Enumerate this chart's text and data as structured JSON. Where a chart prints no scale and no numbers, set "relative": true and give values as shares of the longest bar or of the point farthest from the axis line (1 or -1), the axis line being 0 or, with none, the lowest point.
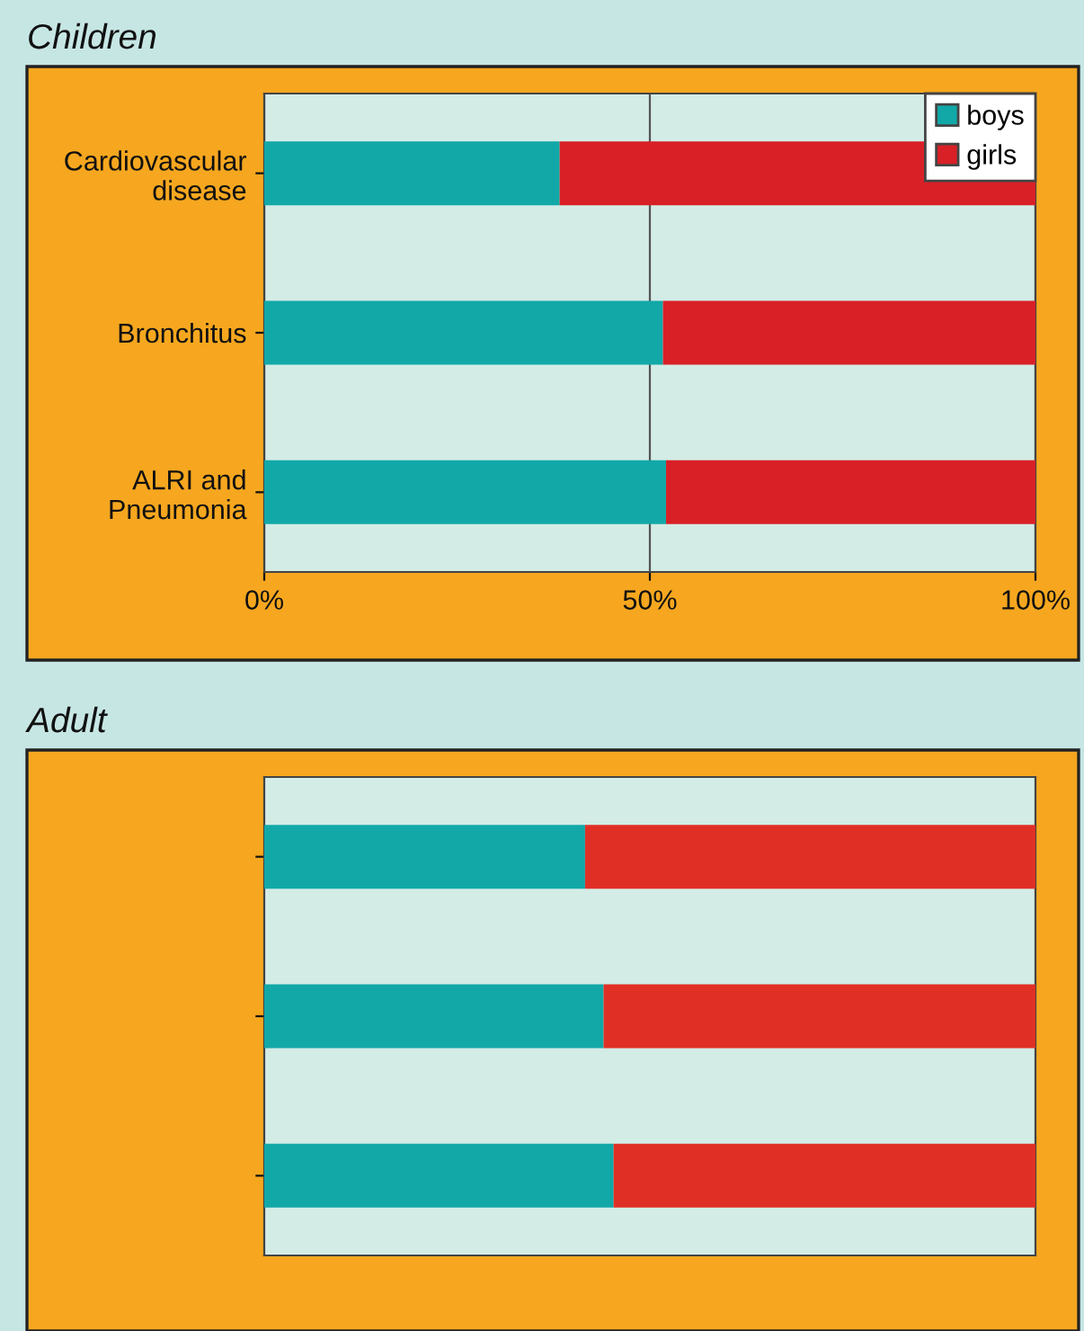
{
  "chart_data": [
    {
      "type": "bar",
      "title": "Children",
      "orientation": "horizontal",
      "stacked": true,
      "categories": [
        "Cardiovascular\ndisease",
        "Bronchitus",
        "ALRI and\nPneumonia"
      ],
      "series": [
        {
          "name": "boys",
          "color": "#12a8a8",
          "values": [
            38.3,
            51.7,
            52.1
          ]
        },
        {
          "name": "girls",
          "color": "#d92027",
          "values": [
            61.7,
            48.3,
            47.9
          ]
        }
      ],
      "xlim": [
        0,
        100
      ],
      "xticks": [
        {
          "value": 0,
          "label": "0%"
        },
        {
          "value": 50,
          "label": "50%"
        },
        {
          "value": 100,
          "label": "100%"
        }
      ],
      "grid": "x",
      "legend": "top right"
    },
    {
      "type": "bar",
      "title": "Adult",
      "orientation": "horizontal",
      "stacked": true,
      "relative": true,
      "categories": [
        null,
        null,
        null
      ],
      "series": [
        {
          "color": "#12a8a8",
          "values": [
            0.416,
            0.44,
            0.453
          ]
        },
        {
          "color": "#e03025",
          "values": [
            0.584,
            0.56,
            0.547
          ]
        }
      ]
    }
  ]
}
